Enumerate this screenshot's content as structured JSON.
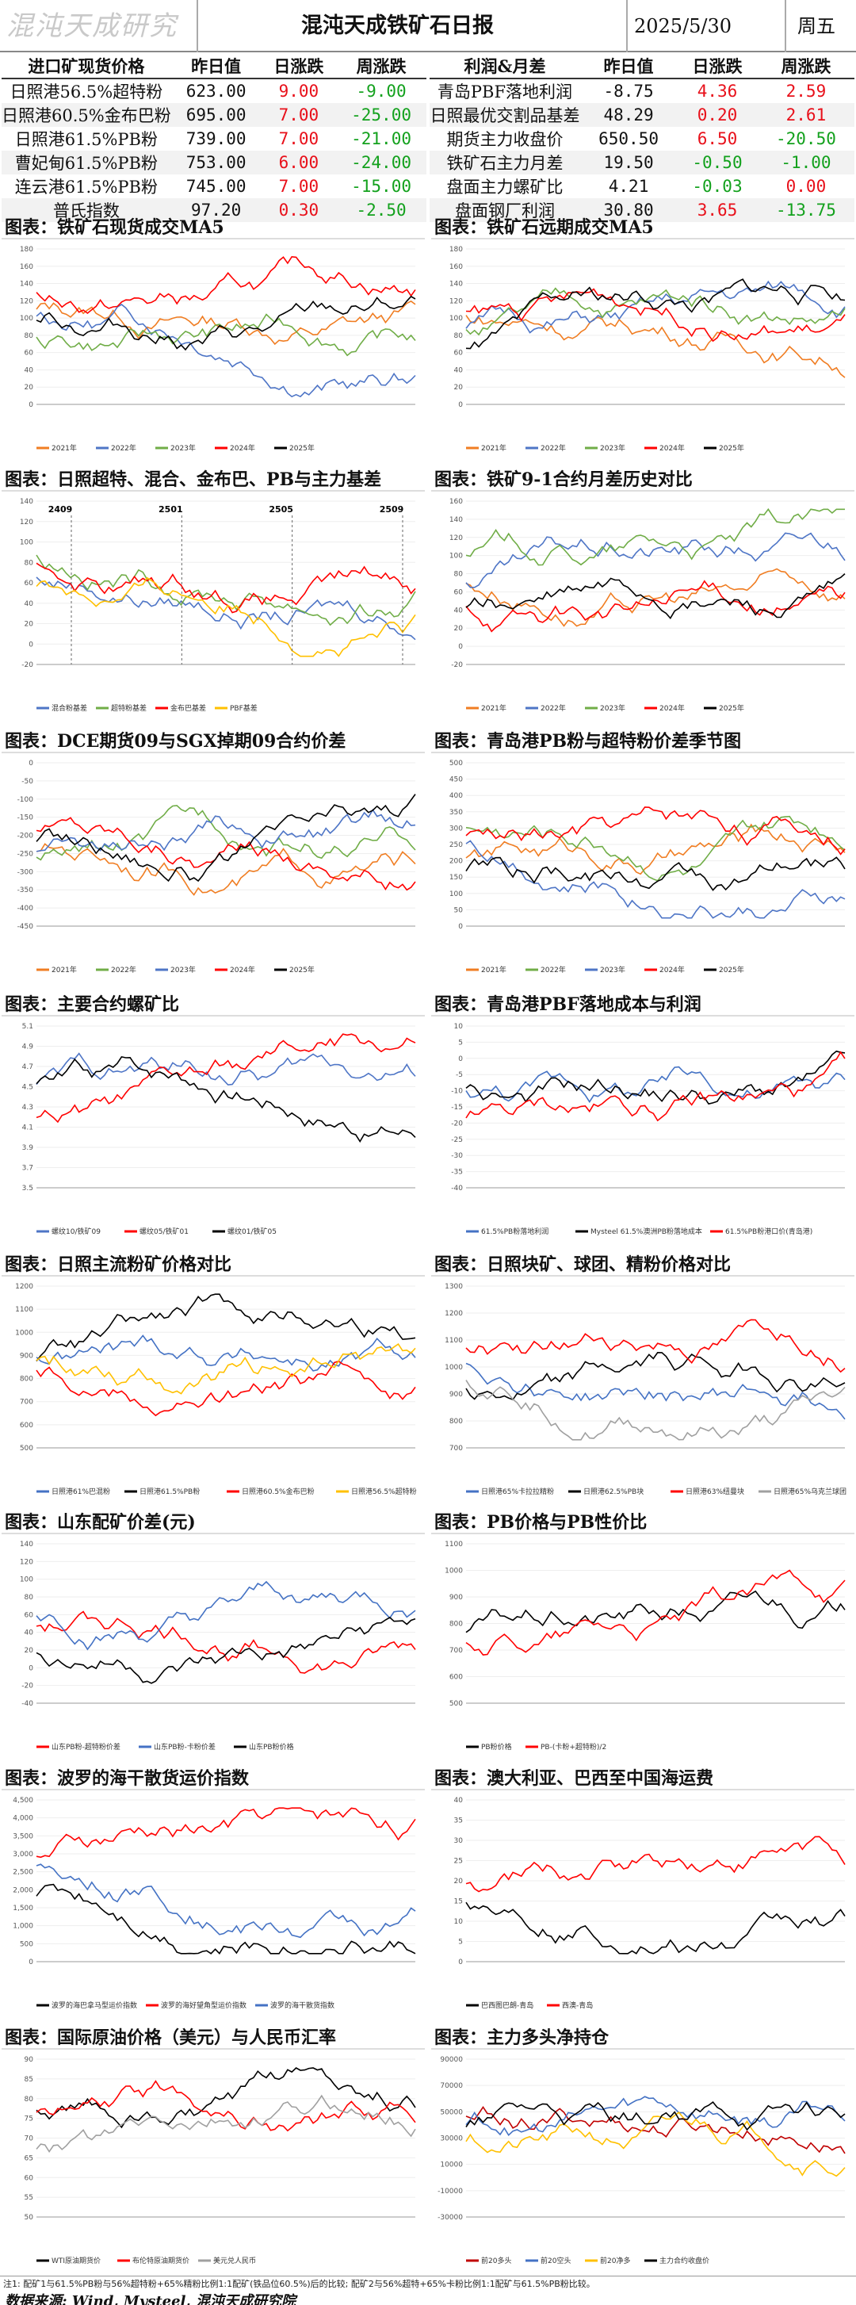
{
  "header": {
    "logo": "混沌天成研究院",
    "title": "混沌天成铁矿石日报",
    "date": "2025/5/30",
    "weekday": "周五"
  },
  "colors": {
    "up": "#e8101a",
    "down": "#13a11d"
  },
  "table_left": {
    "headers": [
      "进口矿现货价格",
      "昨日值",
      "日涨跌",
      "周涨跌"
    ],
    "rows": [
      [
        "日照港56.5%超特粉",
        "623.00",
        "9.00",
        "-9.00"
      ],
      [
        "日照港60.5%金布巴粉",
        "695.00",
        "7.00",
        "-25.00"
      ],
      [
        "日照港61.5%PB粉",
        "739.00",
        "7.00",
        "-21.00"
      ],
      [
        "曹妃甸61.5%PB粉",
        "753.00",
        "6.00",
        "-24.00"
      ],
      [
        "连云港61.5%PB粉",
        "745.00",
        "7.00",
        "-15.00"
      ],
      [
        "普氏指数",
        "97.20",
        "0.30",
        "-2.50"
      ]
    ]
  },
  "table_right": {
    "headers": [
      "利润&月差",
      "昨日值",
      "日涨跌",
      "周涨跌"
    ],
    "rows": [
      [
        "青岛PBF落地利润",
        "-8.75",
        "4.36",
        "2.59"
      ],
      [
        "日照最优交割品基差",
        "48.29",
        "0.20",
        "2.61"
      ],
      [
        "期货主力收盘价",
        "650.50",
        "6.50",
        "-20.50"
      ],
      [
        "铁矿石主力月差",
        "19.50",
        "-0.50",
        "-1.00"
      ],
      [
        "盘面主力螺矿比",
        "4.21",
        "-0.03",
        "0.00"
      ],
      [
        "盘面钢厂利润",
        "30.80",
        "3.65",
        "-13.75"
      ]
    ]
  },
  "panels": [
    {
      "title": "图表：铁矿石现货成交MA5",
      "legend": [
        "2021年",
        "2022年",
        "2023年",
        "2024年",
        "2025年"
      ],
      "colors": [
        "#f07d22",
        "#4e75c6",
        "#70ad47",
        "#ff0000",
        "#000000"
      ],
      "ylim": [
        0,
        180
      ],
      "yticks": [
        "0",
        "20",
        "40",
        "60",
        "80",
        "100",
        "120",
        "140",
        "160",
        "180"
      ]
    },
    {
      "title": "图表：铁矿石远期成交MA5",
      "legend": [
        "2021年",
        "2022年",
        "2023年",
        "2024年",
        "2025年"
      ],
      "colors": [
        "#f07d22",
        "#4e75c6",
        "#70ad47",
        "#ff0000",
        "#000000"
      ],
      "ylim": [
        0,
        180
      ],
      "yticks": [
        "0",
        "20",
        "40",
        "60",
        "80",
        "100",
        "120",
        "140",
        "160",
        "180"
      ]
    },
    {
      "title": "图表：日照超特、混合、金布巴、PB与主力基差",
      "legend": [
        "混合粉基差",
        "超特粉基差",
        "金布巴基差",
        "PBF基差"
      ],
      "colors": [
        "#4e75c6",
        "#70ad47",
        "#ff0000",
        "#ffc000"
      ],
      "ylim": [
        -20,
        140
      ],
      "yticks": [
        "-20",
        "0",
        "20",
        "40",
        "60",
        "80",
        "100",
        "120",
        "140"
      ],
      "annotations": [
        "2409",
        "2501",
        "2505",
        "2509"
      ]
    },
    {
      "title": "图表：铁矿9-1合约月差历史对比",
      "legend": [
        "2021年",
        "2022年",
        "2023年",
        "2024年",
        "2025年"
      ],
      "colors": [
        "#f07d22",
        "#4e75c6",
        "#70ad47",
        "#ff0000",
        "#000000"
      ],
      "ylim": [
        -20,
        160
      ],
      "yticks": [
        "-20",
        "0",
        "20",
        "40",
        "60",
        "80",
        "100",
        "120",
        "140",
        "160"
      ]
    },
    {
      "title": "图表：DCE期货09与SGX掉期09合约价差",
      "legend": [
        "2021年",
        "2022年",
        "2023年",
        "2024年",
        "2025年"
      ],
      "colors": [
        "#f07d22",
        "#70ad47",
        "#4e75c6",
        "#ff0000",
        "#000000"
      ],
      "ylim": [
        -450,
        0
      ],
      "yticks": [
        "-450",
        "-400",
        "-350",
        "-300",
        "-250",
        "-200",
        "-150",
        "-100",
        "-50",
        "0"
      ]
    },
    {
      "title": "图表：青岛港PB粉与超特粉价差季节图",
      "legend": [
        "2021年",
        "2022年",
        "2023年",
        "2024年",
        "2025年"
      ],
      "colors": [
        "#f07d22",
        "#70ad47",
        "#4e75c6",
        "#ff0000",
        "#000000"
      ],
      "ylim": [
        0,
        500
      ],
      "yticks": [
        "0",
        "50",
        "100",
        "150",
        "200",
        "250",
        "300",
        "350",
        "400",
        "450",
        "500"
      ]
    },
    {
      "title": "图表：主要合约螺矿比",
      "legend": [
        "螺纹10/铁矿09",
        "螺纹05/铁矿01",
        "螺纹01/铁矿05"
      ],
      "colors": [
        "#4e75c6",
        "#ff0000",
        "#000000"
      ],
      "ylim": [
        3.5,
        5.1
      ],
      "yticks": [
        "3.5",
        "3.7",
        "3.9",
        "4.1",
        "4.3",
        "4.5",
        "4.7",
        "4.9",
        "5.1"
      ]
    },
    {
      "title": "图表：青岛港PBF落地成本与利润",
      "legend": [
        "61.5%PB粉落地利润",
        "Mysteel 61.5%澳洲PB粉落地成本",
        "61.5%PB粉港口价(青岛港)"
      ],
      "colors": [
        "#4472c4",
        "#000000",
        "#ff0000"
      ],
      "ylim": [
        -40,
        10
      ],
      "yticks": [
        "-40",
        "-35",
        "-30",
        "-25",
        "-20",
        "-15",
        "-10",
        "-5",
        "0",
        "5",
        "10"
      ]
    },
    {
      "title": "图表：日照主流粉矿价格对比",
      "legend": [
        "日照港61%巴混粉",
        "日照港61.5%PB粉",
        "日照港60.5%金布巴粉",
        "日照港56.5%超特粉"
      ],
      "colors": [
        "#4472c4",
        "#000000",
        "#ff0000",
        "#ffc000"
      ],
      "ylim": [
        500,
        1200
      ],
      "yticks": [
        "500",
        "600",
        "700",
        "800",
        "900",
        "1000",
        "1100",
        "1200"
      ]
    },
    {
      "title": "图表：日照块矿、球团、精粉价格对比",
      "legend": [
        "日照港65%卡拉拉精粉",
        "日照港62.5%PB块",
        "日照港63%纽曼块",
        "日照港65%乌克兰球团"
      ],
      "colors": [
        "#4472c4",
        "#000000",
        "#ff0000",
        "#a0a0a0"
      ],
      "ylim": [
        700,
        1300
      ],
      "yticks": [
        "700",
        "800",
        "900",
        "1000",
        "1100",
        "1200",
        "1300"
      ]
    },
    {
      "title": "图表：山东配矿价差(元)",
      "legend": [
        "山东PB粉-超特粉价差",
        "山东PB粉-卡粉价差",
        "山东PB粉价格"
      ],
      "colors": [
        "#ff0000",
        "#4472c4",
        "#000000"
      ],
      "ylim": [
        -40,
        140
      ],
      "yticks": [
        "-40",
        "-20",
        "0",
        "20",
        "40",
        "60",
        "80",
        "100",
        "120",
        "140"
      ]
    },
    {
      "title": "图表：PB价格与PB性价比",
      "legend": [
        "PB粉价格",
        "PB-(卡粉+超特粉)/2"
      ],
      "colors": [
        "#000000",
        "#ff0000"
      ],
      "ylim": [
        500,
        1100
      ],
      "yticks": [
        "500",
        "600",
        "700",
        "800",
        "900",
        "1000",
        "1100"
      ]
    },
    {
      "title": "图表：波罗的海干散货运价指数",
      "legend": [
        "波罗的海巴拿马型运价指数",
        "波罗的海好望角型运价指数",
        "波罗的海干散货指数"
      ],
      "colors": [
        "#000000",
        "#ff0000",
        "#4472c4"
      ],
      "ylim": [
        0,
        4500
      ],
      "yticks": [
        "0",
        "500",
        "1,000",
        "1,500",
        "2,000",
        "2,500",
        "3,000",
        "3,500",
        "4,000",
        "4,500"
      ]
    },
    {
      "title": "图表：澳大利亚、巴西至中国海运费",
      "legend": [
        "巴西图巴朗-青岛",
        "西澳-青岛"
      ],
      "colors": [
        "#000000",
        "#ff0000"
      ],
      "ylim": [
        0,
        40
      ],
      "yticks": [
        "0",
        "5",
        "10",
        "15",
        "20",
        "25",
        "30",
        "35",
        "40"
      ]
    },
    {
      "title": "图表：国际原油价格（美元）与人民币汇率",
      "legend": [
        "WTI原油期货价",
        "布伦特原油期货价",
        "美元兑人民币"
      ],
      "colors": [
        "#000000",
        "#ff0000",
        "#a0a0a0"
      ],
      "ylim": [
        50,
        90
      ],
      "yticks": [
        "50",
        "55",
        "60",
        "65",
        "70",
        "75",
        "80",
        "85",
        "90"
      ]
    },
    {
      "title": "图表：主力多头净持仓",
      "legend": [
        "前20多头",
        "前20空头",
        "前20净多",
        "主力合约收盘价"
      ],
      "colors": [
        "#c00000",
        "#4472c4",
        "#ffc000",
        "#000000"
      ],
      "ylim": [
        -30000,
        100000
      ],
      "yticks": [
        "-30000",
        "-10000",
        "10000",
        "30000",
        "50000",
        "70000",
        "90000"
      ]
    }
  ],
  "footer": {
    "note": "注1: 配矿1与61.5%PB粉与56%超特粉+65%精粉比例1:1配矿(铁品位60.5%)后的比较; 配矿2与56%超特+65%卡粉比例1:1配矿与61.5%PB粉比较。",
    "source": "数据来源: Wind, Mysteel, 混沌天成研究院"
  }
}
